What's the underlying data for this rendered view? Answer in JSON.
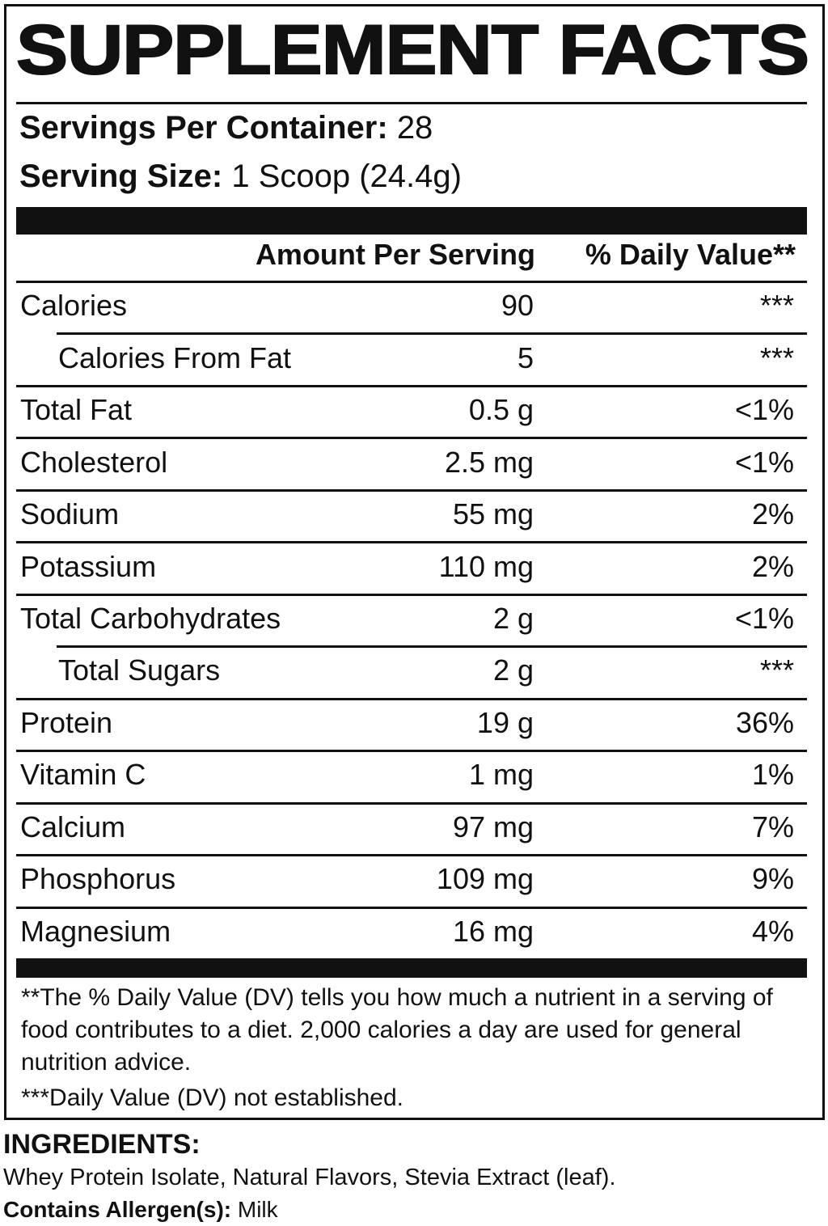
{
  "title": "SUPPLEMENT FACTS",
  "servings_per_container": {
    "label": "Servings Per Container:",
    "value": "28"
  },
  "serving_size": {
    "label": "Serving Size:",
    "value": "1 Scoop (24.4g)"
  },
  "table": {
    "header": [
      "Amount Per Serving",
      "% Daily Value**"
    ],
    "rows": [
      [
        "Calories",
        "90",
        "***"
      ],
      [
        "Calories From Fat",
        "5",
        "***"
      ],
      [
        "Total Fat",
        "0.5 g",
        "<1%"
      ],
      [
        "Cholesterol",
        "2.5 mg",
        "<1%"
      ],
      [
        "Sodium",
        "55 mg",
        "2%"
      ],
      [
        "Potassium",
        "110 mg",
        "2%"
      ],
      [
        "Total Carbohydrates",
        "2 g",
        "<1%"
      ],
      [
        "Total Sugars",
        "2 g",
        "***"
      ],
      [
        "Protein",
        "19 g",
        "36%"
      ],
      [
        "Vitamin C",
        "1 mg",
        "1%"
      ],
      [
        "Calcium",
        "97 mg",
        "7%"
      ],
      [
        "Phosphorus",
        "109 mg",
        "9%"
      ],
      [
        "Magnesium",
        "16 mg",
        "4%"
      ]
    ],
    "sub_rows": [
      1,
      7
    ]
  },
  "footnotes": [
    "**The % Daily Value (DV) tells you how much a nutrient in a serving of food contributes to a diet. 2,000 calories a day are used for general nutrition advice.",
    "***Daily Value (DV) not established."
  ],
  "ingredients": {
    "label": "INGREDIENTS:",
    "text": "Whey Protein Isolate, Natural Flavors, Stevia Extract (leaf)."
  },
  "allergens": {
    "label": "Contains Allergen(s):",
    "value": "Milk"
  }
}
